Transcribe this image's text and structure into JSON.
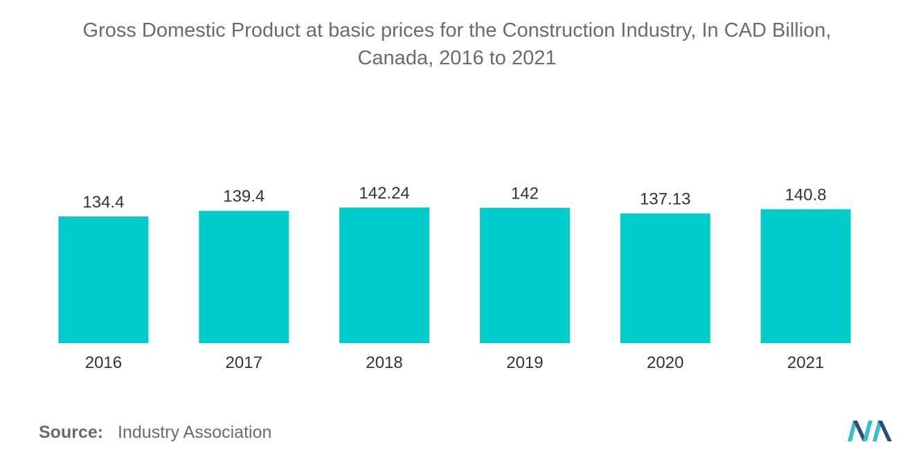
{
  "chart_data": {
    "type": "bar",
    "title": "Gross Domestic Product at basic prices for the Construction Industry, In CAD Billion,",
    "subtitle": "Canada, 2016 to 2021",
    "categories": [
      "2016",
      "2017",
      "2018",
      "2019",
      "2020",
      "2021"
    ],
    "values": [
      134.4,
      139.4,
      142.24,
      142,
      137.13,
      140.8
    ],
    "value_labels": [
      "134.4",
      "139.4",
      "142.24",
      "142",
      "137.13",
      "140.8"
    ],
    "xlabel": "",
    "ylabel": "",
    "grid": false,
    "bar_color": "#00cccc"
  },
  "source": {
    "label": "Source:",
    "text": "Industry Association"
  },
  "colors": {
    "text": "#6b6b6b",
    "logo_dark": "#2a4f7a",
    "logo_light": "#34c0c8"
  }
}
